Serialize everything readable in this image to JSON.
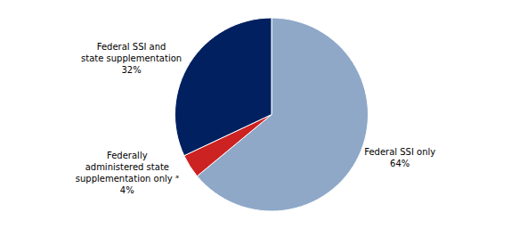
{
  "chart_data": {
    "type": "pie",
    "categories": [
      "Federal SSI only",
      "Federally\nadministered state\nsupplementation only ᵃ",
      "Federal SSI and\nstate supplementation"
    ],
    "values": [
      64,
      4,
      32
    ],
    "value_labels": [
      "64%",
      "4%",
      "32%"
    ],
    "colors": [
      "#8fa8c8",
      "#cc2222",
      "#002060"
    ],
    "data_labels": true
  }
}
